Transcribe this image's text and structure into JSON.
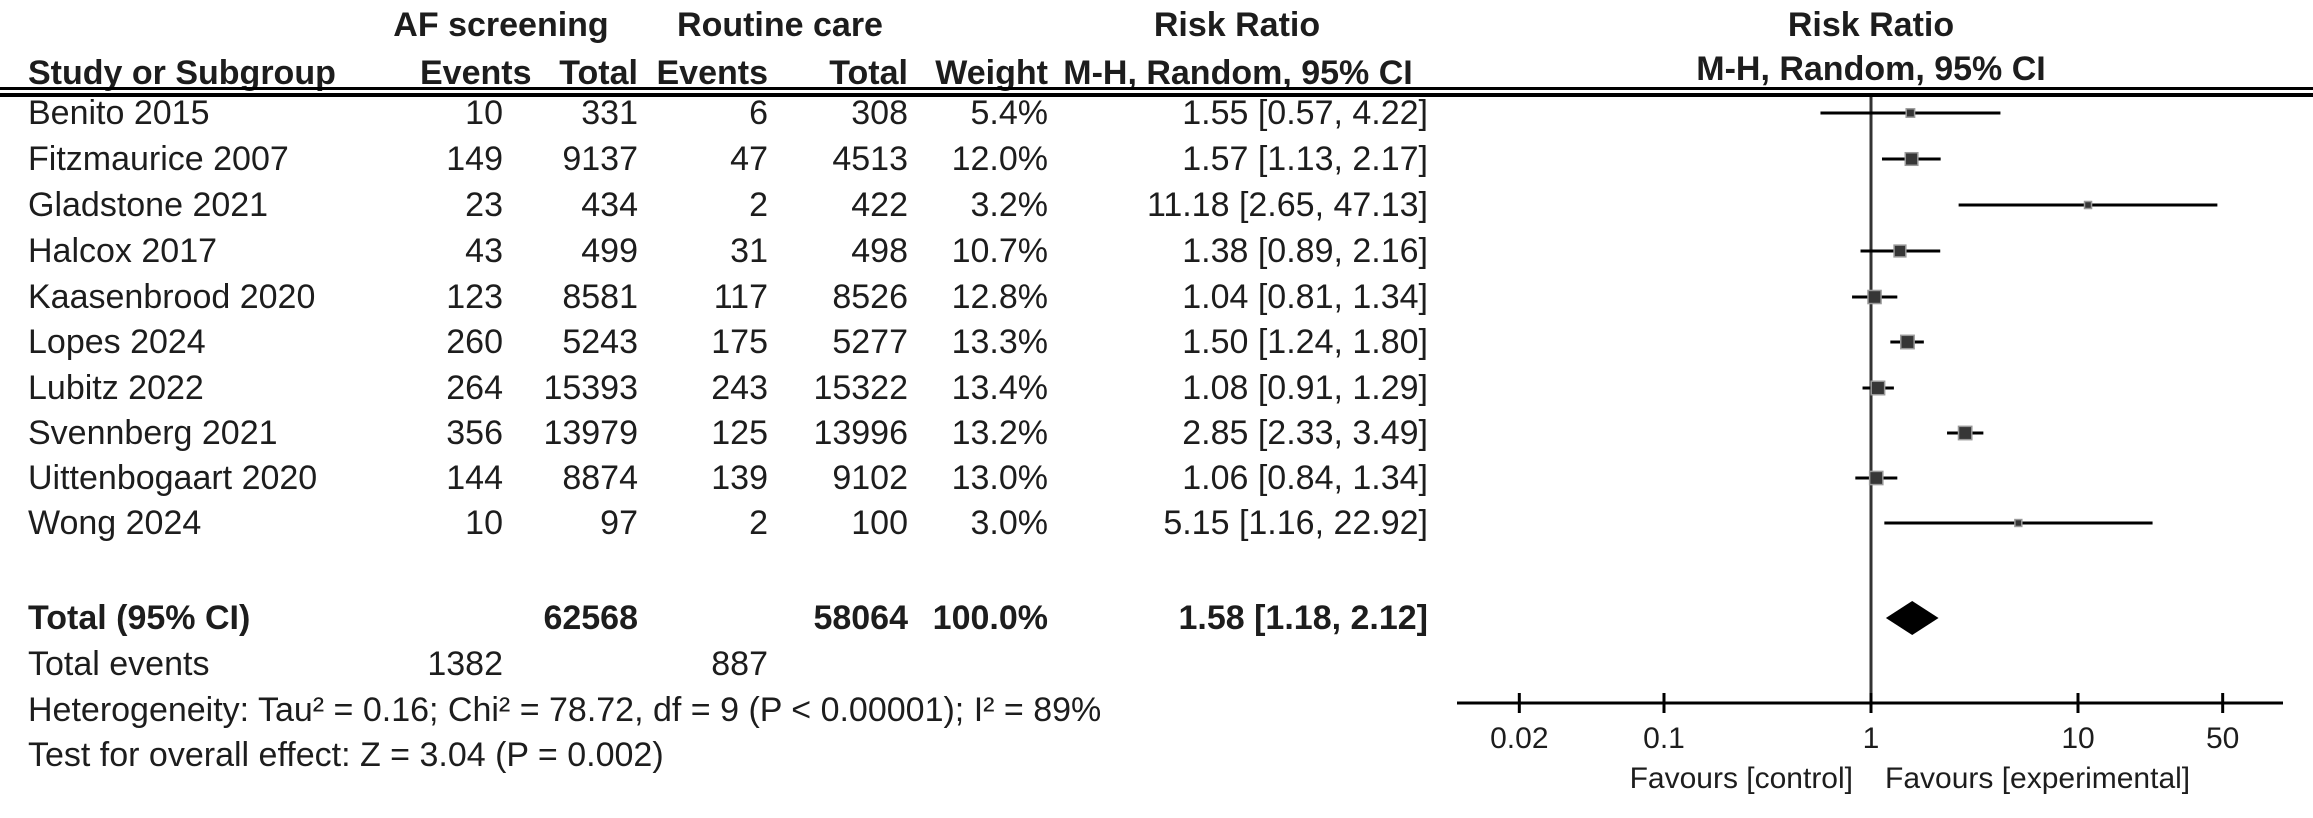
{
  "table": {
    "group1_header": "AF screening",
    "group2_header": "Routine care",
    "risk_ratio_header": "Risk Ratio",
    "method_header": "M-H, Random, 95% CI",
    "col_headers": {
      "study": "Study or Subgroup",
      "events": "Events",
      "total": "Total",
      "weight": "Weight"
    },
    "total_row": {
      "label": "Total (95% CI)",
      "total1": "62568",
      "total2": "58064",
      "weight": "100.0%",
      "ci_text": "1.58 [1.18, 2.12]"
    },
    "total_events_row": {
      "label": "Total events",
      "events1": "1382",
      "events2": "887"
    },
    "heterogeneity": "Heterogeneity: Tau² = 0.16; Chi² = 78.72, df = 9 (P < 0.00001); I² = 89%",
    "overall_effect": "Test for overall effect: Z = 3.04 (P = 0.002)"
  },
  "chart_data": {
    "type": "forest",
    "x_scale": "log",
    "x_range": [
      0.01,
      100
    ],
    "x_ticks": [
      "0.02",
      "0.1",
      "1",
      "10",
      "50"
    ],
    "null_line_value": 1,
    "favours_left": "Favours [control]",
    "favours_right": "Favours [experimental]",
    "studies": [
      {
        "name": "Benito 2015",
        "events1": "10",
        "total1": "331",
        "events2": "6",
        "total2": "308",
        "weight": "5.4%",
        "ci_text": "1.55 [0.57, 4.22]",
        "rr": 1.55,
        "ci_low": 0.57,
        "ci_high": 4.22,
        "weight_pct": 5.4
      },
      {
        "name": "Fitzmaurice 2007",
        "events1": "149",
        "total1": "9137",
        "events2": "47",
        "total2": "4513",
        "weight": "12.0%",
        "ci_text": "1.57 [1.13, 2.17]",
        "rr": 1.57,
        "ci_low": 1.13,
        "ci_high": 2.17,
        "weight_pct": 12.0
      },
      {
        "name": "Gladstone 2021",
        "events1": "23",
        "total1": "434",
        "events2": "2",
        "total2": "422",
        "weight": "3.2%",
        "ci_text": "11.18 [2.65, 47.13]",
        "rr": 11.18,
        "ci_low": 2.65,
        "ci_high": 47.13,
        "weight_pct": 3.2
      },
      {
        "name": "Halcox 2017",
        "events1": "43",
        "total1": "499",
        "events2": "31",
        "total2": "498",
        "weight": "10.7%",
        "ci_text": "1.38 [0.89, 2.16]",
        "rr": 1.38,
        "ci_low": 0.89,
        "ci_high": 2.16,
        "weight_pct": 10.7
      },
      {
        "name": "Kaasenbrood 2020",
        "events1": "123",
        "total1": "8581",
        "events2": "117",
        "total2": "8526",
        "weight": "12.8%",
        "ci_text": "1.04 [0.81, 1.34]",
        "rr": 1.04,
        "ci_low": 0.81,
        "ci_high": 1.34,
        "weight_pct": 12.8
      },
      {
        "name": "Lopes 2024",
        "events1": "260",
        "total1": "5243",
        "events2": "175",
        "total2": "5277",
        "weight": "13.3%",
        "ci_text": "1.50 [1.24, 1.80]",
        "rr": 1.5,
        "ci_low": 1.24,
        "ci_high": 1.8,
        "weight_pct": 13.3
      },
      {
        "name": "Lubitz 2022",
        "events1": "264",
        "total1": "15393",
        "events2": "243",
        "total2": "15322",
        "weight": "13.4%",
        "ci_text": "1.08 [0.91, 1.29]",
        "rr": 1.08,
        "ci_low": 0.91,
        "ci_high": 1.29,
        "weight_pct": 13.4
      },
      {
        "name": "Svennberg 2021",
        "events1": "356",
        "total1": "13979",
        "events2": "125",
        "total2": "13996",
        "weight": "13.2%",
        "ci_text": "2.85 [2.33, 3.49]",
        "rr": 2.85,
        "ci_low": 2.33,
        "ci_high": 3.49,
        "weight_pct": 13.2
      },
      {
        "name": "Uittenbogaart 2020",
        "events1": "144",
        "total1": "8874",
        "events2": "139",
        "total2": "9102",
        "weight": "13.0%",
        "ci_text": "1.06 [0.84, 1.34]",
        "rr": 1.06,
        "ci_low": 0.84,
        "ci_high": 1.34,
        "weight_pct": 13.0
      },
      {
        "name": "Wong 2024",
        "events1": "10",
        "total1": "97",
        "events2": "2",
        "total2": "100",
        "weight": "3.0%",
        "ci_text": "5.15 [1.16, 22.92]",
        "rr": 5.15,
        "ci_low": 1.16,
        "ci_high": 22.92,
        "weight_pct": 3.0
      }
    ],
    "total": {
      "rr": 1.58,
      "ci_low": 1.18,
      "ci_high": 2.12
    }
  },
  "colors": {
    "text": "#1d1d1d",
    "line": "#000000",
    "null_line": "#333333",
    "square_fill": "#363636",
    "square_border": "#999999",
    "diamond": "#000000"
  }
}
